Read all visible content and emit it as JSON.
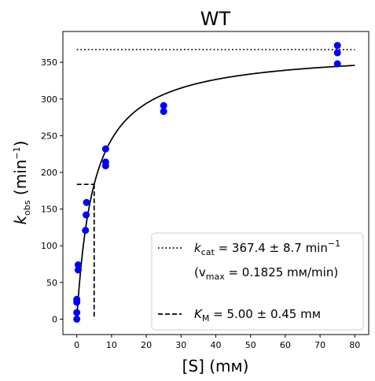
{
  "chart_data": {
    "type": "scatter",
    "title": "WT",
    "xlabel": "[S] (mм)",
    "ylabel": {
      "main": "k",
      "sub": "obs",
      "unit_open": " (min",
      "unit_sup": "−1",
      "unit_close": ")"
    },
    "xlim": [
      -4,
      84
    ],
    "ylim": [
      -21,
      392
    ],
    "x_ticks": [
      0,
      10,
      20,
      30,
      40,
      50,
      60,
      70,
      80
    ],
    "y_ticks": [
      0,
      50,
      100,
      150,
      200,
      250,
      300,
      350
    ],
    "grid": false,
    "legend_position": "lower right",
    "colors": {
      "points": "#0000ff",
      "curve": "#000000",
      "lines": "#000000"
    },
    "points": [
      {
        "x": 0,
        "y": 0
      },
      {
        "x": 0,
        "y": 9
      },
      {
        "x": 0,
        "y": 23
      },
      {
        "x": 0,
        "y": 27
      },
      {
        "x": 0.4,
        "y": 67
      },
      {
        "x": 0.4,
        "y": 74
      },
      {
        "x": 2.5,
        "y": 121
      },
      {
        "x": 2.7,
        "y": 142
      },
      {
        "x": 2.8,
        "y": 159
      },
      {
        "x": 8.3,
        "y": 209
      },
      {
        "x": 8.3,
        "y": 214
      },
      {
        "x": 8.3,
        "y": 232
      },
      {
        "x": 25,
        "y": 283
      },
      {
        "x": 25,
        "y": 291
      },
      {
        "x": 75,
        "y": 348
      },
      {
        "x": 75,
        "y": 363
      },
      {
        "x": 75,
        "y": 373
      }
    ],
    "fit": {
      "kcat": 367.4,
      "KM": 5.0,
      "x_range": [
        0,
        80
      ]
    },
    "kcat_line": {
      "y": 367.4,
      "x_range": [
        0,
        80
      ]
    },
    "km_lines": {
      "x": 5.0,
      "y": 183.7,
      "x_start": 0
    },
    "legend": {
      "kcat": {
        "sym": "k",
        "sub": "cat",
        "text": " = 367.4 ± 8.7 min",
        "sup": "−1"
      },
      "vmax": {
        "open": "(v",
        "sub": "max",
        "text": " = 0.1825 mм/min)"
      },
      "km": {
        "sym": "K",
        "sub": "M",
        "text": " = 5.00 ± 0.45 mм"
      }
    }
  }
}
